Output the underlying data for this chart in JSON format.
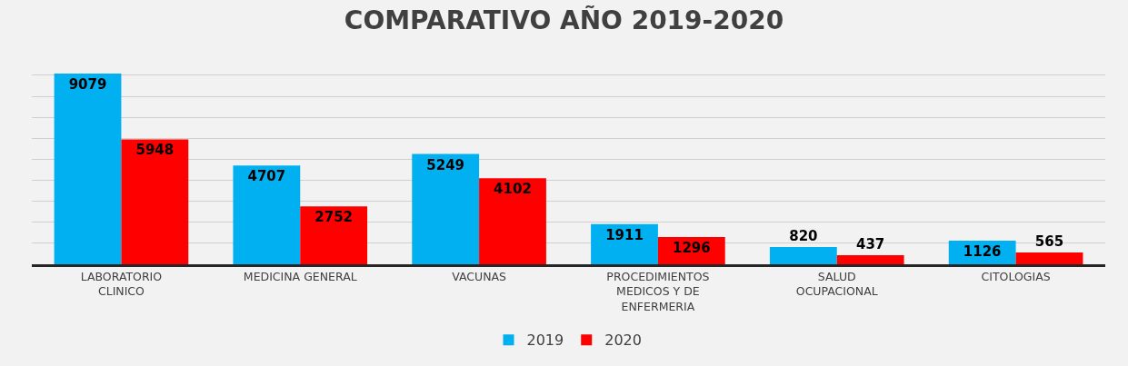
{
  "chart_data": {
    "type": "bar",
    "title": "COMPARATIVO AÑO 2019-2020",
    "categories": [
      "LABORATORIO CLINICO",
      "MEDICINA GENERAL",
      "VACUNAS",
      "PROCEDIMIENTOS MEDICOS Y DE ENFERMERIA",
      "SALUD OCUPACIONAL",
      "CITOLOGIAS"
    ],
    "series": [
      {
        "name": "2019",
        "color": "#00b0f0",
        "values": [
          9079,
          4707,
          5249,
          1911,
          820,
          1126
        ]
      },
      {
        "name": "2020",
        "color": "#ff0000",
        "values": [
          5948,
          2752,
          4102,
          1296,
          437,
          565
        ]
      }
    ],
    "tick_labels": "x",
    "grid": "y",
    "legend": "bottom",
    "data_labels": true
  }
}
